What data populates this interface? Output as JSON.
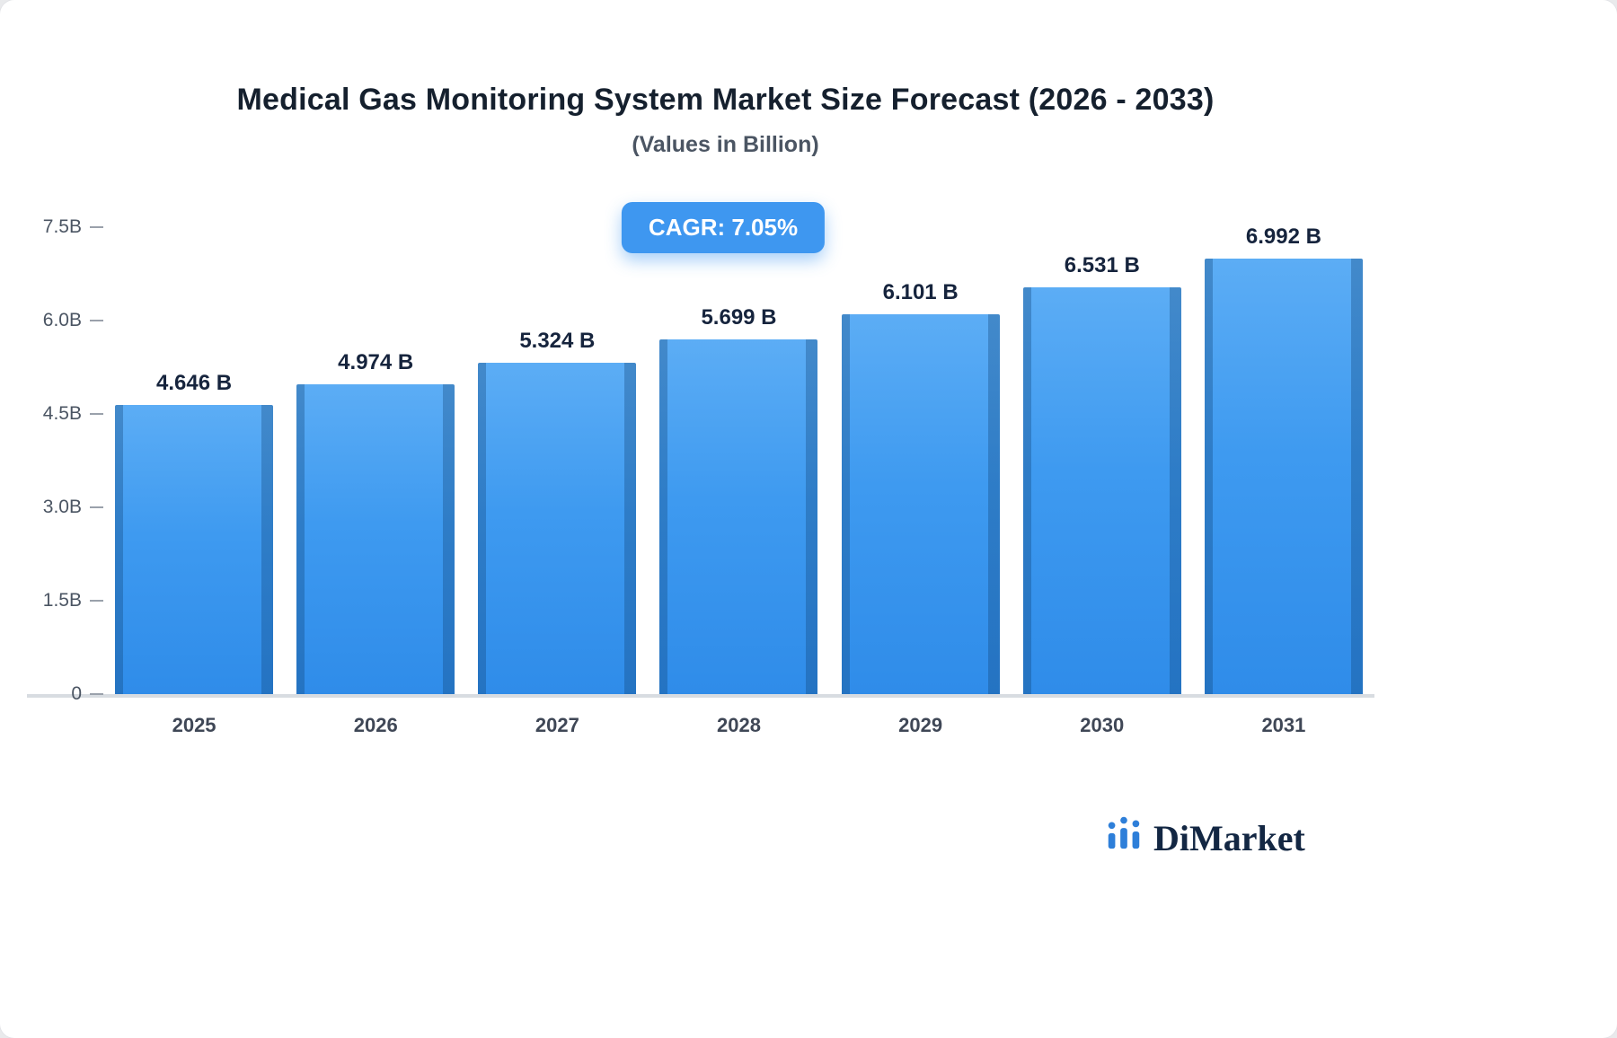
{
  "title": "Medical Gas Monitoring System Market Size Forecast (2026 - 2033)",
  "subtitle": "(Values in Billion)",
  "badge": {
    "label": "CAGR: 7.05%"
  },
  "chart_data": {
    "type": "bar",
    "categories": [
      "2025",
      "2026",
      "2027",
      "2028",
      "2029",
      "2030",
      "2031"
    ],
    "values": [
      4.646,
      4.974,
      5.324,
      5.699,
      6.101,
      6.531,
      6.992
    ],
    "value_labels": [
      "4.646 B",
      "4.974 B",
      "5.324 B",
      "5.699 B",
      "6.101 B",
      "6.531 B",
      "6.992 B"
    ],
    "title": "Medical Gas Monitoring System Market Size Forecast (2026 - 2033)",
    "xlabel": "",
    "ylabel": "",
    "ylim": [
      0,
      7.5
    ],
    "yticks": [
      0,
      1.5,
      3.0,
      4.5,
      6.0,
      7.5
    ],
    "ytick_labels": [
      "0",
      "1.5B",
      "3.0B",
      "4.5B",
      "6.0B",
      "7.5B"
    ],
    "grid": false,
    "legend": "none",
    "bar_color": "#3e9af0",
    "bar_edge_color": "#2a71b5"
  },
  "logo": {
    "text": "DiMarket",
    "icon": "bar-chart-logo-icon"
  }
}
